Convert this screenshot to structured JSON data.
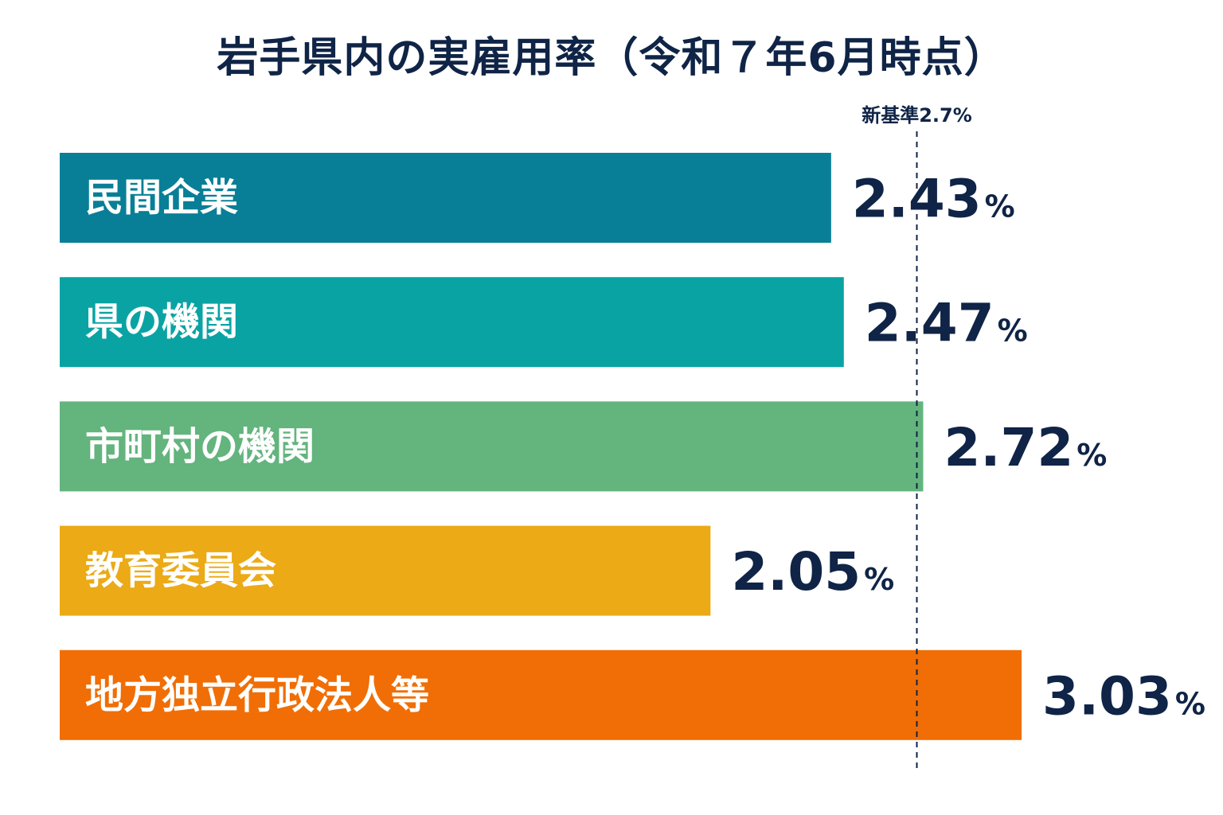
{
  "chart_data": {
    "type": "bar",
    "orientation": "horizontal",
    "title": "岩手県内の実雇用率（令和７年6月時点）",
    "categories": [
      "民間企業",
      "県の機関",
      "市町村の機関",
      "教育委員会",
      "地方独立行政法人等"
    ],
    "values": [
      2.43,
      2.47,
      2.72,
      2.05,
      3.03
    ],
    "value_labels": [
      "2.43",
      "2.47",
      "2.72",
      "2.05",
      "3.03"
    ],
    "unit": "%",
    "colors": [
      "#087f97",
      "#0aa3a3",
      "#63b47d",
      "#ebaa16",
      "#f06e05"
    ],
    "reference_line": {
      "value": 2.7,
      "label": "新基準2.7%",
      "style": "dashed",
      "color": "#0f2446"
    },
    "xlim": [
      0,
      3.5
    ],
    "grid": false,
    "legend": "none"
  }
}
